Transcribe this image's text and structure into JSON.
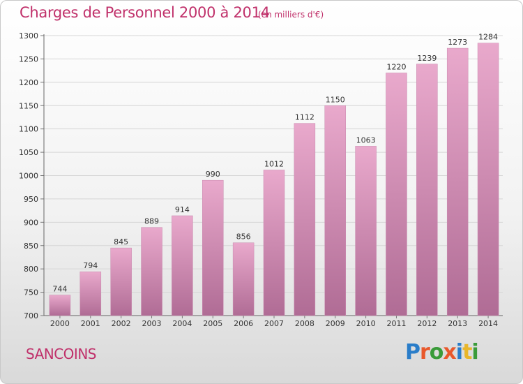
{
  "header": {
    "title": "Charges de Personnel 2000 à 2014",
    "subtitle": "(en milliers d'€)"
  },
  "footer": {
    "city": "SANCOINS",
    "logo_text": "Proxiti",
    "logo_colors": [
      "#2a7dc9",
      "#e8582b",
      "#3a9b3a",
      "#e8582b",
      "#2a7dc9",
      "#e8b62b",
      "#3a9b3a"
    ]
  },
  "chart_data": {
    "type": "bar",
    "categories": [
      "2000",
      "2001",
      "2002",
      "2003",
      "2004",
      "2005",
      "2006",
      "2007",
      "2008",
      "2009",
      "2010",
      "2011",
      "2012",
      "2013",
      "2014"
    ],
    "values": [
      744,
      794,
      845,
      889,
      914,
      990,
      856,
      1012,
      1112,
      1150,
      1063,
      1220,
      1239,
      1273,
      1284
    ],
    "title": "Charges de Personnel 2000 à 2014",
    "subtitle": "(en milliers d'€)",
    "xlabel": "",
    "ylabel": "",
    "ylim": [
      700,
      1300
    ],
    "yticks": [
      700,
      750,
      800,
      850,
      900,
      950,
      1000,
      1050,
      1100,
      1150,
      1200,
      1250,
      1300
    ],
    "grid": true,
    "bar_color_top": "#e9a9cc",
    "bar_color_bottom": "#b06c95"
  }
}
